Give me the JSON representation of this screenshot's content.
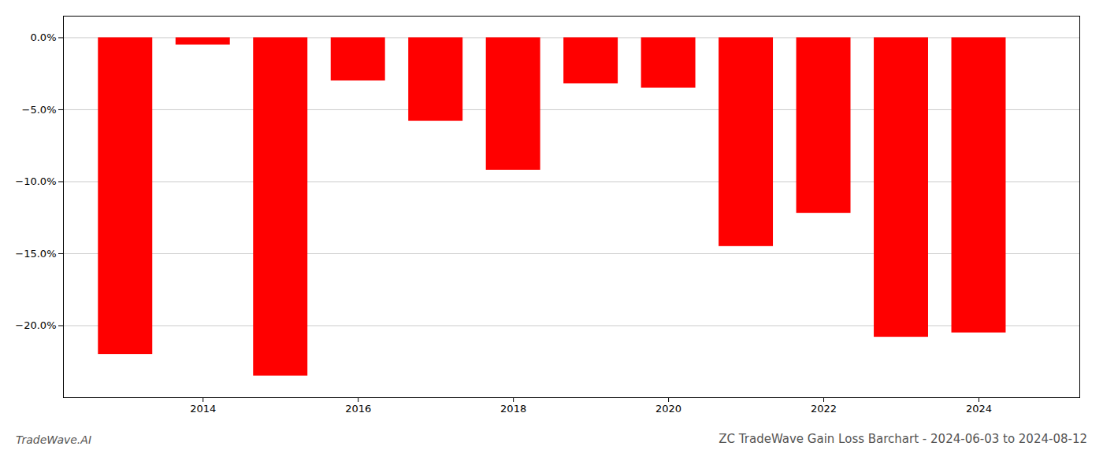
{
  "chart_data": {
    "type": "bar",
    "title": "ZC TradeWave Gain Loss Barchart - 2024-06-03 to 2024-08-12",
    "annotations": [
      "TradeWave.AI"
    ],
    "x": [
      2013,
      2014,
      2015,
      2016,
      2017,
      2018,
      2019,
      2020,
      2021,
      2022,
      2023,
      2024
    ],
    "values": [
      -22.0,
      -0.5,
      -23.5,
      -3.0,
      -5.8,
      -9.2,
      -3.2,
      -3.5,
      -14.5,
      -12.2,
      -20.8,
      -20.5
    ],
    "color": "#ff0000",
    "xlim": [
      2012.2,
      2025.3
    ],
    "xticks": [
      2014,
      2016,
      2018,
      2020,
      2022,
      2024
    ],
    "ylim": [
      -25,
      1.5
    ],
    "yticks": [
      {
        "value": 0.0,
        "label": "0.0%"
      },
      {
        "value": -5.0,
        "label": "−5.0%"
      },
      {
        "value": -10.0,
        "label": "−10.0%"
      },
      {
        "value": -15.0,
        "label": "−15.0%"
      },
      {
        "value": -20.0,
        "label": "−20.0%"
      }
    ],
    "grid": true
  }
}
